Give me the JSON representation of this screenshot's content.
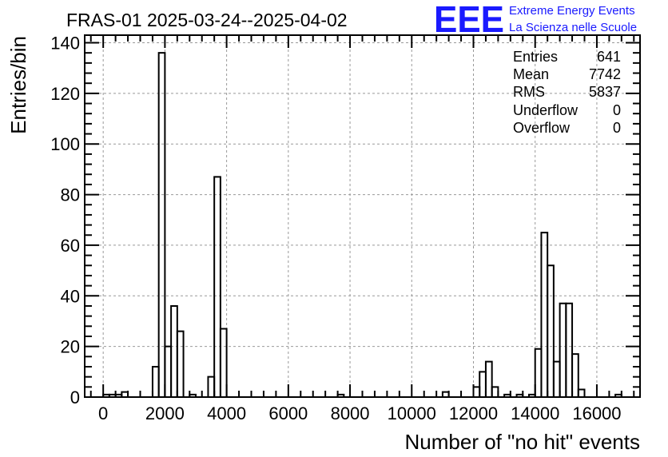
{
  "chart_data": {
    "type": "histogram",
    "title": "FRAS-01 2025-03-24--2025-04-02",
    "xlabel": "Number of \"no hit\" events",
    "ylabel": "Entries/bin",
    "xlim": [
      -600,
      17400
    ],
    "ylim": [
      0,
      143
    ],
    "bin_width": 200,
    "grid": true,
    "x_ticks": [
      0,
      2000,
      4000,
      6000,
      8000,
      10000,
      12000,
      14000,
      16000
    ],
    "x_tick_labels": [
      "0",
      "2000",
      "4000",
      "6000",
      "8000",
      "10000",
      "12000",
      "14000",
      "16000"
    ],
    "y_ticks": [
      0,
      20,
      40,
      60,
      80,
      100,
      120,
      140
    ],
    "y_tick_labels": [
      "0",
      "20",
      "40",
      "60",
      "80",
      "100",
      "120",
      "140"
    ],
    "line_color": "#000000",
    "bins": [
      {
        "x": 0,
        "y": 1
      },
      {
        "x": 200,
        "y": 1
      },
      {
        "x": 400,
        "y": 1
      },
      {
        "x": 600,
        "y": 2
      },
      {
        "x": 1600,
        "y": 12
      },
      {
        "x": 1800,
        "y": 136
      },
      {
        "x": 2000,
        "y": 20
      },
      {
        "x": 2200,
        "y": 36
      },
      {
        "x": 2400,
        "y": 26
      },
      {
        "x": 2800,
        "y": 1
      },
      {
        "x": 3400,
        "y": 8
      },
      {
        "x": 3600,
        "y": 87
      },
      {
        "x": 3800,
        "y": 27
      },
      {
        "x": 7600,
        "y": 1
      },
      {
        "x": 11000,
        "y": 2
      },
      {
        "x": 12000,
        "y": 4
      },
      {
        "x": 12200,
        "y": 10
      },
      {
        "x": 12400,
        "y": 14
      },
      {
        "x": 12600,
        "y": 4
      },
      {
        "x": 13000,
        "y": 1
      },
      {
        "x": 13400,
        "y": 1
      },
      {
        "x": 13800,
        "y": 1
      },
      {
        "x": 14000,
        "y": 19
      },
      {
        "x": 14200,
        "y": 65
      },
      {
        "x": 14400,
        "y": 52
      },
      {
        "x": 14600,
        "y": 14
      },
      {
        "x": 14800,
        "y": 37
      },
      {
        "x": 15000,
        "y": 37
      },
      {
        "x": 15200,
        "y": 17
      },
      {
        "x": 15400,
        "y": 3
      },
      {
        "x": 16600,
        "y": 1
      }
    ],
    "stats": {
      "entries_label": "Entries",
      "entries_value": "641",
      "mean_label": "Mean",
      "mean_value": "7742",
      "rms_label": "RMS",
      "rms_value": "5837",
      "underflow_label": "Underflow",
      "underflow_value": "0",
      "overflow_label": "Overflow",
      "overflow_value": "0"
    }
  },
  "logo": {
    "mark": "EEE",
    "line1": "Extreme Energy Events",
    "line2": "La Scienza nelle Scuole",
    "color": "#1a1aff"
  }
}
